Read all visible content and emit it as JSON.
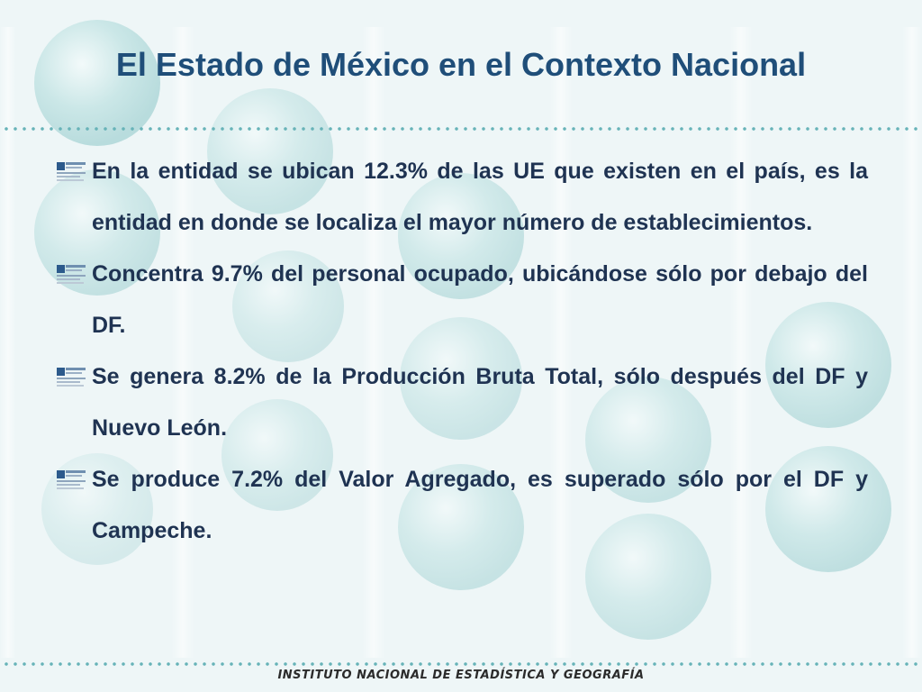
{
  "slide": {
    "title": "El Estado de México en el Contexto Nacional",
    "bullets": [
      "En la entidad se ubican 12.3% de las UE que existen en el país, es la entidad en donde se localiza el mayor número de establecimientos.",
      "Concentra 9.7% del personal ocupado, ubicándose sólo por debajo del DF.",
      "Se genera 8.2% de la Producción Bruta Total, sólo después del DF y Nuevo León.",
      "Se produce 7.2% del Valor Agregado, es superado sólo por el DF y Campeche."
    ],
    "bullet_icon": "inegi-logo-icon",
    "footer": "INSTITUTO NACIONAL  DE ESTADÍSTICA Y GEOGRAFÍA"
  },
  "colors": {
    "title": "#1f4e79",
    "body_text": "#1f3352",
    "dots": "#67b3b8",
    "background": "#eef6f7"
  }
}
